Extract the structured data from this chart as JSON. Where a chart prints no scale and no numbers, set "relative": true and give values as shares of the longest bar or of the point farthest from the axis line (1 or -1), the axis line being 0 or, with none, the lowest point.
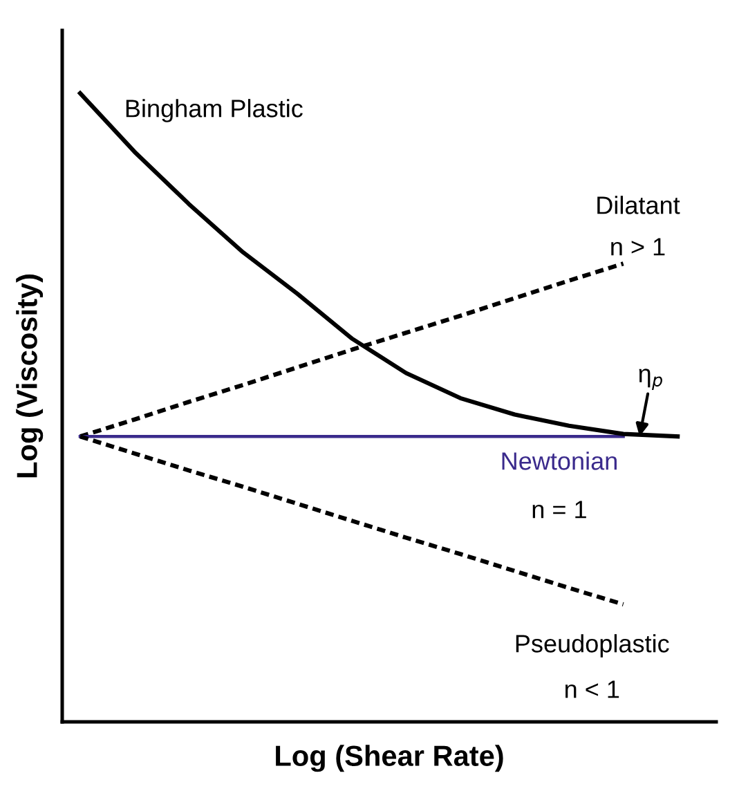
{
  "chart_data": {
    "type": "line",
    "relative": true,
    "xlabel": "Log (Shear Rate)",
    "ylabel": "Log (Viscosity)",
    "categories": [
      null,
      null,
      null,
      null,
      null,
      null,
      null,
      null,
      null,
      null,
      null,
      null
    ],
    "series": [
      {
        "name": "Bingham Plastic",
        "color": "#000000",
        "line_style": "solid",
        "values": [
          1.0,
          0.907,
          0.824,
          0.747,
          0.681,
          0.61,
          0.555,
          0.515,
          0.489,
          0.471,
          0.458,
          0.454
        ]
      },
      {
        "name": "Dilatant",
        "color": "#000000",
        "line_style": "dotted",
        "values": [
          0.454,
          0.481,
          0.509,
          0.536,
          0.564,
          0.592,
          0.619,
          0.646,
          0.674,
          0.702,
          0.729,
          null
        ]
      },
      {
        "name": "Newtonian",
        "color": "#3a2a8c",
        "line_style": "solid",
        "values": [
          0.454,
          0.454,
          0.454,
          0.454,
          0.454,
          0.454,
          0.454,
          0.454,
          0.454,
          0.454,
          0.454,
          null
        ]
      },
      {
        "name": "Pseudoplastic",
        "color": "#000000",
        "line_style": "dotted",
        "values": [
          0.454,
          0.427,
          0.4,
          0.374,
          0.347,
          0.32,
          0.293,
          0.267,
          0.24,
          0.213,
          0.187,
          null
        ]
      }
    ],
    "annotations": [
      "n > 1",
      "n = 1",
      "n < 1",
      "η$_{p}$"
    ]
  }
}
